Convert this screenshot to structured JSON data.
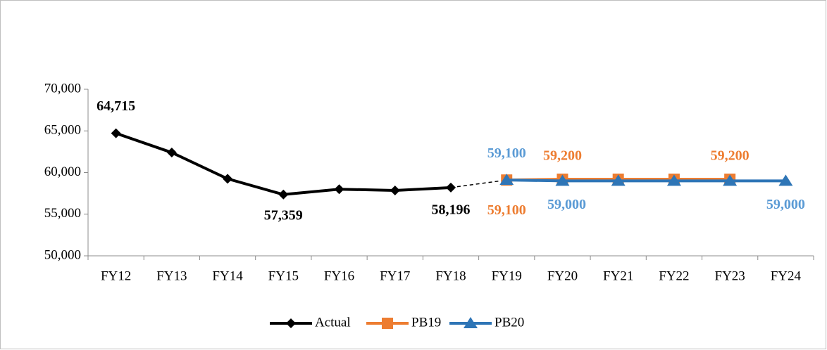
{
  "chart_data": {
    "type": "line",
    "categories": [
      "FY12",
      "FY13",
      "FY14",
      "FY15",
      "FY16",
      "FY17",
      "FY18",
      "FY19",
      "FY20",
      "FY21",
      "FY22",
      "FY23",
      "FY24"
    ],
    "series": [
      {
        "name": "Actual",
        "color": "#000000",
        "marker": "diamond",
        "values": [
          64715,
          62400,
          59250,
          57359,
          58000,
          57850,
          58196,
          null,
          null,
          null,
          null,
          null,
          null
        ],
        "value_labels": [
          "64,715",
          null,
          null,
          "57,359",
          null,
          null,
          "58,196",
          null,
          null,
          null,
          null,
          null,
          null
        ]
      },
      {
        "name": "PB19",
        "color": "#ed7d31",
        "marker": "square",
        "values": [
          null,
          null,
          null,
          null,
          null,
          null,
          null,
          59100,
          59200,
          59200,
          59200,
          59200,
          null
        ],
        "value_labels": [
          null,
          null,
          null,
          null,
          null,
          null,
          null,
          "59,100",
          "59,200",
          null,
          null,
          "59,200",
          null
        ]
      },
      {
        "name": "PB20",
        "color": "#2e75b6",
        "marker": "triangle",
        "values": [
          null,
          null,
          null,
          null,
          null,
          null,
          null,
          59100,
          59000,
          59000,
          59000,
          59000,
          59000
        ],
        "value_labels": [
          null,
          null,
          null,
          null,
          null,
          null,
          null,
          "59,100",
          "59,000",
          null,
          null,
          null,
          "59,000"
        ]
      }
    ],
    "ylim": [
      50000,
      70000
    ],
    "yticks": [
      {
        "value": 50000,
        "label": "50,000"
      },
      {
        "value": 55000,
        "label": "55,000"
      },
      {
        "value": 60000,
        "label": "60,000"
      },
      {
        "value": 65000,
        "label": "65,000"
      },
      {
        "value": 70000,
        "label": "70,000"
      }
    ],
    "legend": "bottom"
  }
}
